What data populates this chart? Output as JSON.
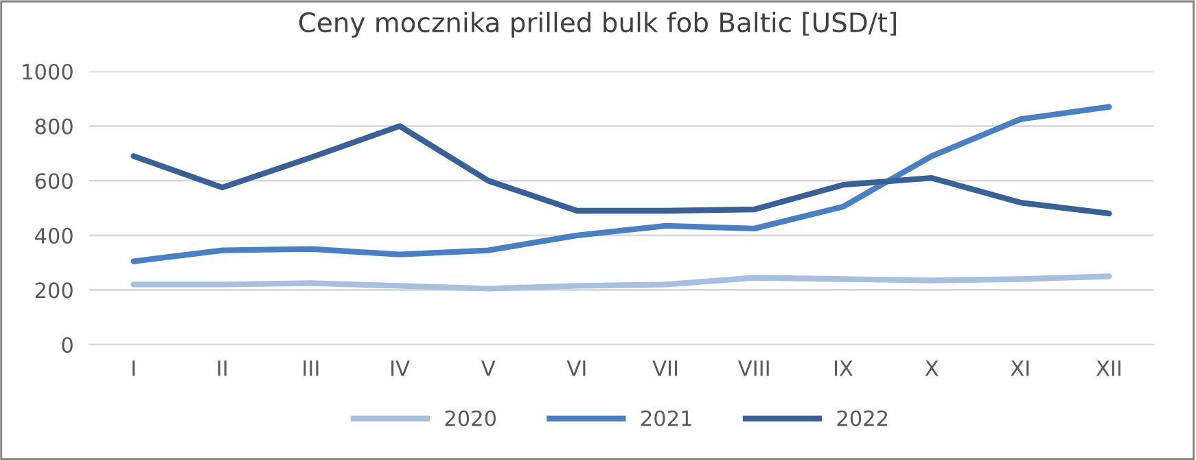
{
  "chart_data": {
    "type": "line",
    "title": "Ceny mocznika prilled bulk fob Baltic [USD/t]",
    "categories": [
      "I",
      "II",
      "III",
      "IV",
      "V",
      "VI",
      "VII",
      "VIII",
      "IX",
      "X",
      "XI",
      "XII"
    ],
    "series": [
      {
        "name": "2020",
        "color": "#a9bfe0",
        "values": [
          220,
          220,
          225,
          215,
          205,
          215,
          220,
          245,
          240,
          235,
          240,
          250
        ]
      },
      {
        "name": "2021",
        "color": "#4a7fc1",
        "values": [
          305,
          345,
          350,
          330,
          345,
          400,
          435,
          425,
          505,
          690,
          825,
          870
        ]
      },
      {
        "name": "2022",
        "color": "#3a6195",
        "values": [
          690,
          575,
          685,
          800,
          600,
          490,
          490,
          495,
          585,
          610,
          520,
          480
        ]
      }
    ],
    "ylim": [
      0,
      1000
    ],
    "yticks": [
      0,
      200,
      400,
      600,
      800,
      1000
    ],
    "grid": "y",
    "legend": "bottom",
    "marker": "none",
    "line_style": "solid"
  }
}
